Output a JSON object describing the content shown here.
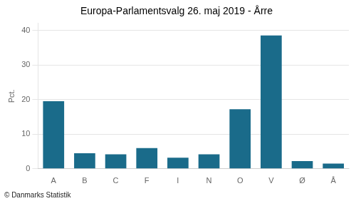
{
  "chart_data": {
    "type": "bar",
    "title": "Europa-Parlamentsvalg 26. maj 2019 - Årre",
    "ylabel": "Pct.",
    "annotations": [
      "© Danmarks Statistik"
    ],
    "categories": [
      "A",
      "B",
      "C",
      "F",
      "I",
      "N",
      "O",
      "V",
      "Ø",
      "Å"
    ],
    "values": [
      19.5,
      4.5,
      4.2,
      6.0,
      3.2,
      4.2,
      17.2,
      38.5,
      2.2,
      1.5
    ],
    "color": "#1a6b8a",
    "ylim": [
      0,
      42
    ],
    "yticks": [
      0,
      10,
      20,
      30,
      40
    ],
    "grid": true
  }
}
